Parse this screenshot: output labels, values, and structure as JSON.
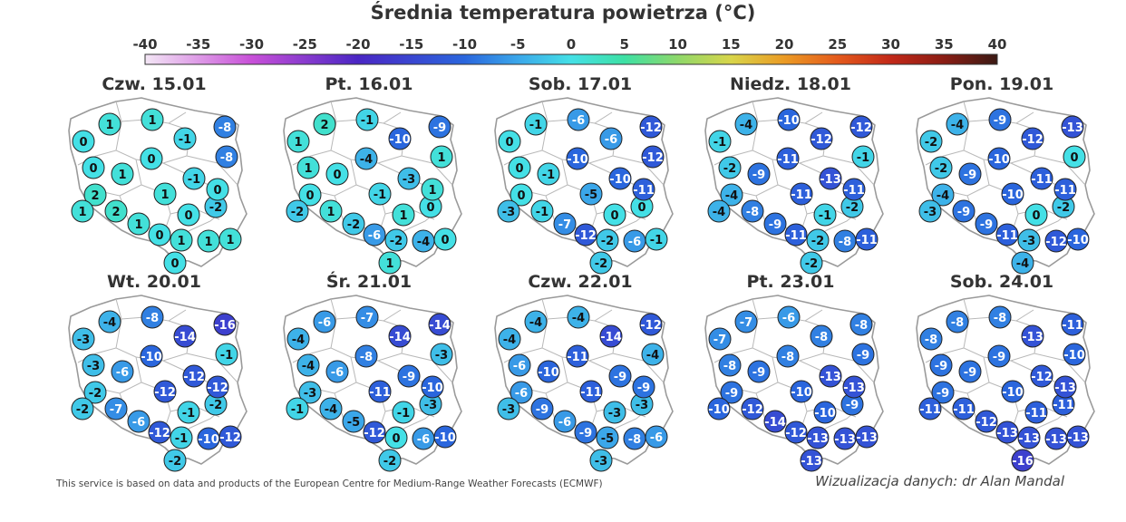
{
  "title": "Średnia temperatura powietrza (°C)",
  "colorbar": {
    "ticks": [
      "-40",
      "-35",
      "-30",
      "-25",
      "-20",
      "-15",
      "-10",
      "-5",
      "0",
      "5",
      "10",
      "15",
      "20",
      "25",
      "30",
      "35",
      "40"
    ],
    "range": [
      -40,
      40
    ],
    "stops": [
      {
        "t": -40,
        "color": "#f3e6f5"
      },
      {
        "t": -30,
        "color": "#c850d8"
      },
      {
        "t": -20,
        "color": "#4a26c4"
      },
      {
        "t": -10,
        "color": "#2a66dd"
      },
      {
        "t": -5,
        "color": "#3ba7ea"
      },
      {
        "t": 0,
        "color": "#44e0e6"
      },
      {
        "t": 5,
        "color": "#3de0a4"
      },
      {
        "t": 10,
        "color": "#8ed86a"
      },
      {
        "t": 15,
        "color": "#d8d54a"
      },
      {
        "t": 20,
        "color": "#eb9b24"
      },
      {
        "t": 25,
        "color": "#e45a1c"
      },
      {
        "t": 30,
        "color": "#c22818"
      },
      {
        "t": 35,
        "color": "#8a1d14"
      },
      {
        "t": 40,
        "color": "#3a1a14"
      }
    ]
  },
  "days": [
    {
      "label": "Czw. 15.01",
      "temps": [
        "0",
        "1",
        "1",
        "-8",
        "0",
        "1",
        "0",
        "-1",
        "-8",
        "2",
        "1",
        "-1",
        "-2",
        "2",
        "1",
        "0",
        "0",
        "1",
        "1",
        "1",
        "0",
        "1",
        "0"
      ]
    },
    {
      "label": "Pt. 16.01",
      "temps": [
        "1",
        "2",
        "-1",
        "-9",
        "1",
        "0",
        "-4",
        "-10",
        "1",
        "0",
        "-1",
        "-3",
        "0",
        "1",
        "-2",
        "-6",
        "1",
        "-2",
        "-2",
        "-4",
        "1",
        "0",
        "1"
      ]
    },
    {
      "label": "Sob. 17.01",
      "temps": [
        "0",
        "-1",
        "-6",
        "-12",
        "0",
        "-1",
        "-10",
        "-6",
        "-12",
        "0",
        "-5",
        "-10",
        "0",
        "-1",
        "-7",
        "-12",
        "0",
        "-3",
        "-2",
        "-6",
        "-11",
        "-1",
        "-2"
      ]
    },
    {
      "label": "Niedz. 18.01",
      "temps": [
        "-1",
        "-4",
        "-10",
        "-12",
        "-2",
        "-9",
        "-11",
        "-12",
        "-1",
        "-4",
        "-11",
        "-13",
        "-2",
        "-8",
        "-9",
        "-11",
        "-1",
        "-4",
        "-2",
        "-8",
        "-11",
        "-11",
        "-2"
      ]
    },
    {
      "label": "Pon. 19.01",
      "temps": [
        "-2",
        "-4",
        "-9",
        "-13",
        "-2",
        "-9",
        "-10",
        "-12",
        "0",
        "-4",
        "-10",
        "-11",
        "-2",
        "-9",
        "-9",
        "-11",
        "0",
        "-3",
        "-3",
        "-12",
        "-11",
        "-10",
        "-4"
      ]
    },
    {
      "label": "Wt. 20.01",
      "temps": [
        "-3",
        "-4",
        "-8",
        "-16",
        "-3",
        "-6",
        "-10",
        "-14",
        "-1",
        "-2",
        "-12",
        "-12",
        "-2",
        "-7",
        "-6",
        "-12",
        "-1",
        "-2",
        "-1",
        "-10",
        "-12",
        "-12",
        "-2"
      ]
    },
    {
      "label": "Śr. 21.01",
      "temps": [
        "-4",
        "-6",
        "-7",
        "-14",
        "-4",
        "-6",
        "-8",
        "-14",
        "-3",
        "-3",
        "-11",
        "-9",
        "-3",
        "-4",
        "-5",
        "-12",
        "-1",
        "-1",
        "0",
        "-6",
        "-10",
        "-10",
        "-2"
      ]
    },
    {
      "label": "Czw. 22.01",
      "temps": [
        "-4",
        "-4",
        "-4",
        "-12",
        "-6",
        "-10",
        "-11",
        "-14",
        "-4",
        "-6",
        "-11",
        "-9",
        "-3",
        "-9",
        "-6",
        "-9",
        "-3",
        "-3",
        "-5",
        "-8",
        "-9",
        "-6",
        "-3"
      ]
    },
    {
      "label": "Pt. 23.01",
      "temps": [
        "-7",
        "-7",
        "-6",
        "-8",
        "-8",
        "-9",
        "-8",
        "-8",
        "-9",
        "-9",
        "-10",
        "-13",
        "-9",
        "-12",
        "-14",
        "-12",
        "-10",
        "-10",
        "-13",
        "-13",
        "-13",
        "-13",
        "-13"
      ]
    },
    {
      "label": "Sob. 24.01",
      "temps": [
        "-8",
        "-8",
        "-8",
        "-11",
        "-9",
        "-9",
        "-9",
        "-13",
        "-10",
        "-9",
        "-10",
        "-12",
        "-11",
        "-11",
        "-12",
        "-13",
        "-11",
        "-11",
        "-13",
        "-13",
        "-13",
        "-13",
        "-16"
      ]
    }
  ],
  "footer": {
    "left": "This service is based on data and products of the European Centre for Medium-Range Weather Forecasts (ECMWF)",
    "right": "Wizualizacja danych: dr Alan Mandal"
  }
}
